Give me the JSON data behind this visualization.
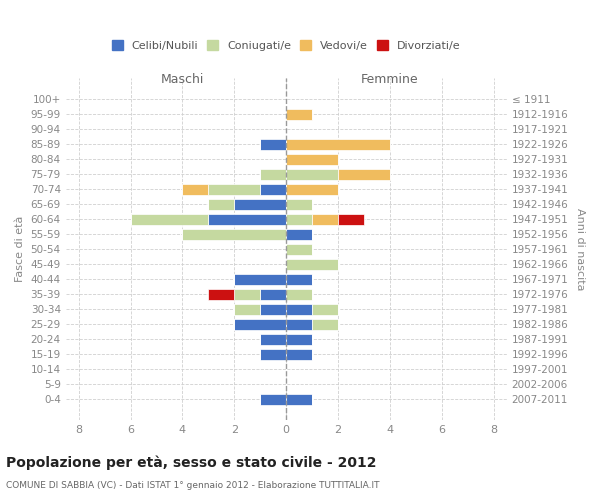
{
  "age_groups": [
    "100+",
    "95-99",
    "90-94",
    "85-89",
    "80-84",
    "75-79",
    "70-74",
    "65-69",
    "60-64",
    "55-59",
    "50-54",
    "45-49",
    "40-44",
    "35-39",
    "30-34",
    "25-29",
    "20-24",
    "15-19",
    "10-14",
    "5-9",
    "0-4"
  ],
  "birth_years": [
    "≤ 1911",
    "1912-1916",
    "1917-1921",
    "1922-1926",
    "1927-1931",
    "1932-1936",
    "1937-1941",
    "1942-1946",
    "1947-1951",
    "1952-1956",
    "1957-1961",
    "1962-1966",
    "1967-1971",
    "1972-1976",
    "1977-1981",
    "1982-1986",
    "1987-1991",
    "1992-1996",
    "1997-2001",
    "2002-2006",
    "2007-2011"
  ],
  "colors": {
    "celibi": "#4472c4",
    "coniugati": "#c5d9a0",
    "vedovi": "#f0bc5e",
    "divorziati": "#cc1111"
  },
  "male": {
    "celibi": [
      0,
      0,
      0,
      1,
      0,
      0,
      1,
      2,
      3,
      0,
      0,
      0,
      2,
      1,
      1,
      2,
      1,
      1,
      0,
      0,
      1
    ],
    "coniugati": [
      0,
      0,
      0,
      0,
      0,
      1,
      2,
      1,
      3,
      4,
      0,
      0,
      0,
      1,
      1,
      0,
      0,
      0,
      0,
      0,
      0
    ],
    "vedovi": [
      0,
      0,
      0,
      0,
      0,
      0,
      1,
      0,
      0,
      0,
      0,
      0,
      0,
      0,
      0,
      0,
      0,
      0,
      0,
      0,
      0
    ],
    "divorziati": [
      0,
      0,
      0,
      0,
      0,
      0,
      0,
      0,
      0,
      0,
      0,
      0,
      0,
      1,
      0,
      0,
      0,
      0,
      0,
      0,
      0
    ]
  },
  "female": {
    "celibi": [
      0,
      0,
      0,
      0,
      0,
      0,
      0,
      0,
      0,
      1,
      0,
      0,
      1,
      0,
      1,
      1,
      1,
      1,
      0,
      0,
      1
    ],
    "coniugati": [
      0,
      0,
      0,
      0,
      0,
      2,
      0,
      1,
      1,
      0,
      1,
      2,
      0,
      1,
      1,
      1,
      0,
      0,
      0,
      0,
      0
    ],
    "vedovi": [
      0,
      1,
      0,
      4,
      2,
      2,
      2,
      0,
      1,
      0,
      0,
      0,
      0,
      0,
      0,
      0,
      0,
      0,
      0,
      0,
      0
    ],
    "divorziati": [
      0,
      0,
      0,
      0,
      0,
      0,
      0,
      0,
      1,
      0,
      0,
      0,
      0,
      0,
      0,
      0,
      0,
      0,
      0,
      0,
      0
    ]
  },
  "xlim": [
    -8.5,
    8.5
  ],
  "xticks": [
    -8,
    -6,
    -4,
    -2,
    0,
    2,
    4,
    6,
    8
  ],
  "xtick_labels": [
    "8",
    "6",
    "4",
    "2",
    "0",
    "2",
    "4",
    "6",
    "8"
  ],
  "title": "Popolazione per età, sesso e stato civile - 2012",
  "subtitle": "COMUNE DI SABBIA (VC) - Dati ISTAT 1° gennaio 2012 - Elaborazione TUTTITALIA.IT",
  "ylabel_left": "Fasce di età",
  "ylabel_right": "Anni di nascita",
  "header_left": "Maschi",
  "header_right": "Femmine",
  "legend_labels": [
    "Celibi/Nubili",
    "Coniugati/e",
    "Vedovi/e",
    "Divorziati/e"
  ],
  "background_color": "#ffffff",
  "grid_color": "#d0d0d0"
}
